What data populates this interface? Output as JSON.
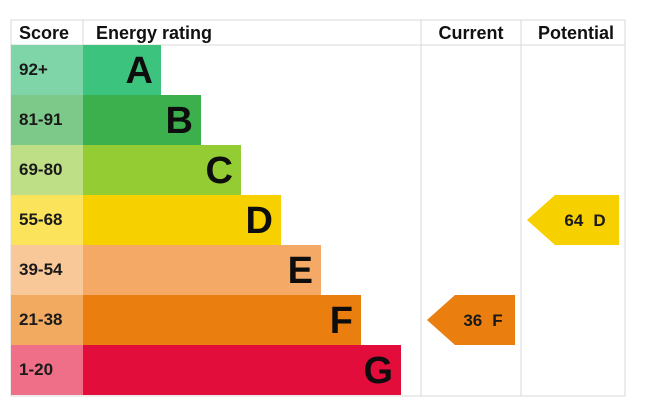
{
  "header": {
    "score": "Score",
    "rating": "Energy rating",
    "current": "Current",
    "potential": "Potential"
  },
  "chart_data": {
    "type": "bar",
    "categories": [
      "A",
      "B",
      "C",
      "D",
      "E",
      "F",
      "G"
    ],
    "score_ranges": [
      "92+",
      "81-91",
      "69-80",
      "55-68",
      "39-54",
      "21-38",
      "1-20"
    ],
    "colors": {
      "bars": [
        "#3cc47f",
        "#3cb04d",
        "#94cc33",
        "#f7d000",
        "#f4aa66",
        "#ea7f10",
        "#e20d3b"
      ],
      "score_cells": [
        "#7fd4a8",
        "#7dc98a",
        "#bedf86",
        "#fbe35c",
        "#f8c898",
        "#f1aa60",
        "#ee6f87"
      ]
    },
    "current": {
      "value": 36,
      "band": "F"
    },
    "potential": {
      "value": 64,
      "band": "D"
    }
  }
}
